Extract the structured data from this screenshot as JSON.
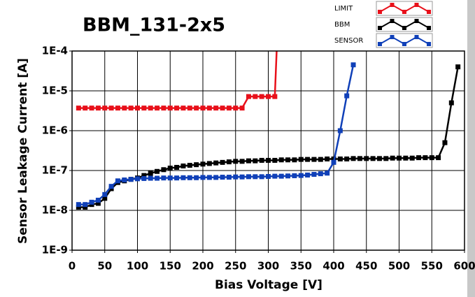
{
  "chart_data": {
    "type": "line",
    "title": "BBM_131-2x5",
    "xlabel": "Bias Voltage [V]",
    "ylabel": "Sensor Leakage Current [A]",
    "xlim": [
      0,
      600
    ],
    "xticks": [
      0,
      50,
      100,
      150,
      200,
      250,
      300,
      350,
      400,
      450,
      500,
      550,
      600
    ],
    "ylim": [
      1e-09,
      0.0001
    ],
    "log_y": true,
    "grid": true,
    "yticks": [
      {
        "value": 1e-09,
        "label": "1E-9"
      },
      {
        "value": 1e-08,
        "label": "1E-8"
      },
      {
        "value": 1e-07,
        "label": "1E-7"
      },
      {
        "value": 1e-06,
        "label": "1E-6"
      },
      {
        "value": 1e-05,
        "label": "1E-5"
      },
      {
        "value": 0.0001,
        "label": "1E-4"
      }
    ],
    "series": [
      {
        "name": "LIMIT",
        "color": "#e8101a",
        "x": [
          10,
          20,
          30,
          40,
          50,
          60,
          70,
          80,
          90,
          100,
          110,
          120,
          130,
          140,
          150,
          160,
          170,
          180,
          190,
          200,
          210,
          220,
          230,
          240,
          250,
          260,
          270,
          280,
          290,
          300,
          310,
          313
        ],
        "values": [
          3.7e-06,
          3.7e-06,
          3.7e-06,
          3.7e-06,
          3.7e-06,
          3.7e-06,
          3.7e-06,
          3.7e-06,
          3.7e-06,
          3.7e-06,
          3.7e-06,
          3.7e-06,
          3.7e-06,
          3.7e-06,
          3.7e-06,
          3.7e-06,
          3.7e-06,
          3.7e-06,
          3.7e-06,
          3.7e-06,
          3.7e-06,
          3.7e-06,
          3.7e-06,
          3.7e-06,
          3.7e-06,
          3.7e-06,
          7.2e-06,
          7.2e-06,
          7.2e-06,
          7.2e-06,
          7.2e-06,
          0.00012
        ]
      },
      {
        "name": "BBM",
        "color": "#000000",
        "x": [
          10,
          20,
          30,
          40,
          50,
          60,
          70,
          80,
          90,
          100,
          110,
          120,
          130,
          140,
          150,
          160,
          170,
          180,
          190,
          200,
          210,
          220,
          230,
          240,
          250,
          260,
          270,
          280,
          290,
          300,
          310,
          320,
          330,
          340,
          350,
          360,
          370,
          380,
          390,
          400,
          410,
          420,
          430,
          440,
          450,
          460,
          470,
          480,
          490,
          500,
          510,
          520,
          530,
          540,
          550,
          560,
          570,
          580,
          590
        ],
        "values": [
          1.2e-08,
          1.2e-08,
          1.4e-08,
          1.5e-08,
          2e-08,
          3.5e-08,
          5e-08,
          5.5e-08,
          6e-08,
          6.5e-08,
          7.5e-08,
          8.5e-08,
          9.5e-08,
          1.05e-07,
          1.15e-07,
          1.2e-07,
          1.3e-07,
          1.35e-07,
          1.4e-07,
          1.45e-07,
          1.5e-07,
          1.55e-07,
          1.6e-07,
          1.65e-07,
          1.7e-07,
          1.7e-07,
          1.75e-07,
          1.75e-07,
          1.8e-07,
          1.8e-07,
          1.8e-07,
          1.85e-07,
          1.85e-07,
          1.85e-07,
          1.9e-07,
          1.9e-07,
          1.9e-07,
          1.9e-07,
          1.95e-07,
          1.95e-07,
          1.95e-07,
          1.95e-07,
          2e-07,
          2e-07,
          2e-07,
          2e-07,
          2e-07,
          2e-07,
          2.05e-07,
          2.05e-07,
          2.05e-07,
          2.05e-07,
          2.1e-07,
          2.1e-07,
          2.1e-07,
          2.1e-07,
          5e-07,
          5e-06,
          4e-05
        ]
      },
      {
        "name": "SENSOR",
        "color": "#1040b8",
        "x": [
          10,
          20,
          30,
          40,
          50,
          60,
          70,
          80,
          90,
          100,
          110,
          120,
          130,
          140,
          150,
          160,
          170,
          180,
          190,
          200,
          210,
          220,
          230,
          240,
          250,
          260,
          270,
          280,
          290,
          300,
          310,
          320,
          330,
          340,
          350,
          360,
          370,
          380,
          390,
          400,
          410,
          420,
          430
        ],
        "values": [
          1.4e-08,
          1.4e-08,
          1.6e-08,
          1.8e-08,
          2.5e-08,
          4e-08,
          5.5e-08,
          5.8e-08,
          6e-08,
          6.2e-08,
          6.3e-08,
          6.4e-08,
          6.4e-08,
          6.5e-08,
          6.5e-08,
          6.5e-08,
          6.6e-08,
          6.6e-08,
          6.6e-08,
          6.7e-08,
          6.7e-08,
          6.7e-08,
          6.8e-08,
          6.8e-08,
          6.9e-08,
          6.9e-08,
          7e-08,
          7e-08,
          7e-08,
          7.1e-08,
          7.2e-08,
          7.2e-08,
          7.3e-08,
          7.4e-08,
          7.5e-08,
          7.7e-08,
          8e-08,
          8.3e-08,
          8.6e-08,
          1.6e-07,
          1e-06,
          7.5e-06,
          4.5e-05
        ]
      }
    ]
  }
}
